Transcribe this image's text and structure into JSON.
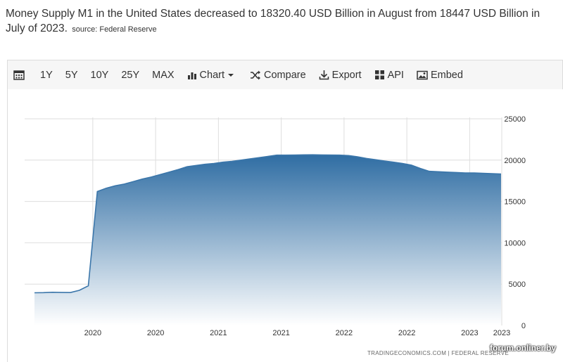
{
  "headline": {
    "text": "Money Supply M1 in the United States decreased to 18320.40 USD Billion in August from 18447 USD Billion in July of 2023.",
    "source": "source: Federal Reserve"
  },
  "toolbar": {
    "ranges": [
      "1Y",
      "5Y",
      "10Y",
      "25Y",
      "MAX"
    ],
    "chart_label": "Chart",
    "compare_label": "Compare",
    "export_label": "Export",
    "api_label": "API",
    "embed_label": "Embed"
  },
  "chart_data": {
    "type": "area",
    "x_tick_labels": [
      "2020",
      "2020",
      "2021",
      "2021",
      "2022",
      "2022",
      "2023",
      "2023"
    ],
    "y_ticks": [
      0,
      5000,
      10000,
      15000,
      20000,
      25000
    ],
    "ylim": [
      0,
      25000
    ],
    "xlim": [
      0,
      52
    ],
    "x_ticks": [
      6.5,
      13.5,
      20.5,
      27.5,
      34.5,
      41.5,
      48.5,
      55.5
    ],
    "grid": true,
    "x": [
      0,
      1,
      2,
      3,
      4,
      5,
      6,
      7,
      8,
      9,
      10,
      11,
      12,
      13,
      14,
      15,
      16,
      17,
      18,
      19,
      20,
      21,
      22,
      23,
      24,
      25,
      26,
      27,
      28,
      29,
      30,
      31,
      32,
      33,
      34,
      35,
      36,
      37,
      38,
      39,
      40,
      41,
      42,
      43,
      44,
      45,
      46,
      47,
      48,
      49,
      50,
      51,
      52
    ],
    "values": [
      3950,
      3970,
      4010,
      3990,
      3980,
      4250,
      4800,
      16200,
      16600,
      16900,
      17100,
      17400,
      17700,
      17950,
      18250,
      18550,
      18850,
      19200,
      19350,
      19500,
      19600,
      19750,
      19850,
      20000,
      20150,
      20300,
      20450,
      20600,
      20600,
      20620,
      20640,
      20650,
      20630,
      20620,
      20600,
      20550,
      20400,
      20200,
      20050,
      19900,
      19750,
      19600,
      19400,
      19000,
      18650,
      18600,
      18550,
      18500,
      18450,
      18447,
      18400,
      18370,
      18320.4
    ],
    "colors": {
      "line": "#3b76aa",
      "fill_top": "#2f6da3",
      "fill_bottom": "#ffffff",
      "grid": "#dedede"
    },
    "credit": "TRADINGECONOMICS.COM  |  FEDERAL RESERVE"
  },
  "watermark": "forum.onliner.by"
}
